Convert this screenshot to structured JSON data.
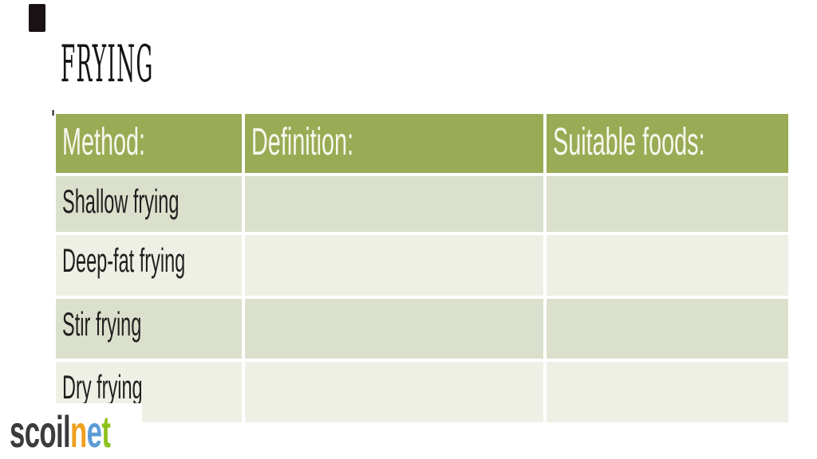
{
  "title": "FRYING",
  "decorations": {
    "corner_bar_color": "#1a1215",
    "tick_mark": "'"
  },
  "table": {
    "columns": [
      {
        "label": "Method:"
      },
      {
        "label": "Definition:"
      },
      {
        "label": "Suitable foods:"
      }
    ],
    "rows": [
      {
        "method": "Shallow frying",
        "definition": "",
        "suitable_foods": ""
      },
      {
        "method": "Deep-fat frying",
        "definition": "",
        "suitable_foods": ""
      },
      {
        "method": "Stir frying",
        "definition": "",
        "suitable_foods": ""
      },
      {
        "method": "Dry frying",
        "definition": "",
        "suitable_foods": ""
      }
    ],
    "colors": {
      "header_bg": "#9aab55",
      "header_text": "#f7f8ee",
      "row_dark": "#dbe0cc",
      "row_light": "#eef0e5",
      "cell_text": "#1f1f1f"
    }
  },
  "logo": {
    "name": "scoilnet",
    "segments": [
      {
        "text": "scoil",
        "color": "#3b3b3d"
      },
      {
        "text": "n",
        "color": "#f0a01f"
      },
      {
        "text": "e",
        "color": "#5b9bd5"
      },
      {
        "text": "t",
        "color": "#8fc11e"
      }
    ]
  }
}
